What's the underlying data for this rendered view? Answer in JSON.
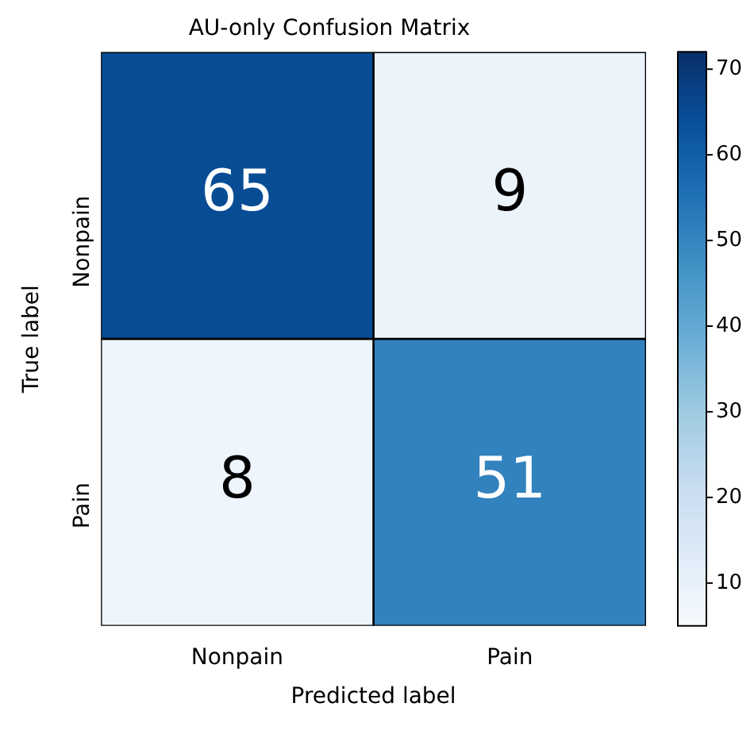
{
  "chart_data": {
    "type": "heatmap",
    "title": "AU-only Confusion Matrix",
    "xlabel": "Predicted label",
    "ylabel": "True label",
    "categories": [
      "Nonpain",
      "Pain"
    ],
    "y_categories": [
      "Nonpain",
      "Pain"
    ],
    "cells": [
      [
        65,
        9
      ],
      [
        8,
        51
      ]
    ],
    "data_labels": true,
    "clim": [
      5,
      72
    ],
    "cticks": [
      10,
      20,
      30,
      40,
      50,
      60,
      70
    ]
  }
}
